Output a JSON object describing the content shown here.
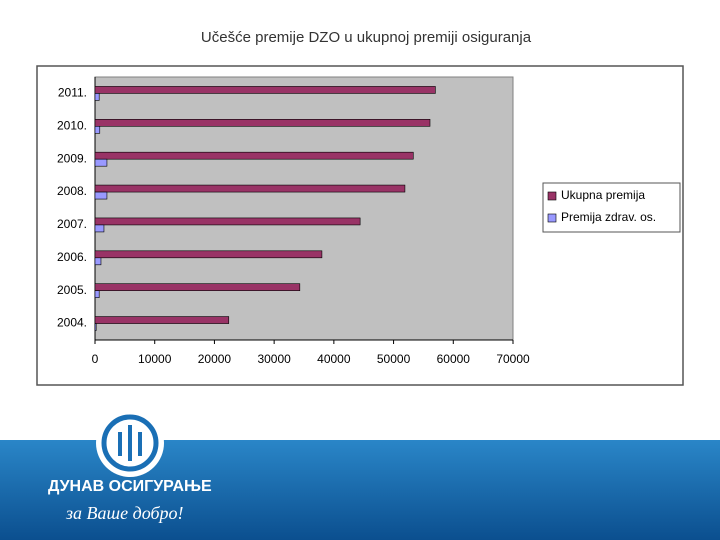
{
  "header": {
    "title": "Učešće premije DZO u ukupnoj premiji osiguranja"
  },
  "chart_data": {
    "type": "barh",
    "categories": [
      "2011.",
      "2010.",
      "2009.",
      "2008.",
      "2007.",
      "2006.",
      "2005.",
      "2004."
    ],
    "series": [
      {
        "name": "Ukupna premija",
        "color": "#993366",
        "values": [
          57000,
          56100,
          53300,
          51900,
          44400,
          38000,
          34300,
          22400
        ]
      },
      {
        "name": "Premija zdrav. os.",
        "color": "#9999ff",
        "values": [
          700,
          800,
          2000,
          2000,
          1500,
          1000,
          700,
          200
        ]
      }
    ],
    "xlim": [
      0,
      70000
    ],
    "xticks": [
      0,
      10000,
      20000,
      30000,
      40000,
      50000,
      60000,
      70000
    ],
    "grid": false,
    "legend": "right"
  },
  "footer": {
    "company": "ДУНАВ ОСИГУРАЊЕ",
    "slogan": "за Ваше добро!"
  }
}
